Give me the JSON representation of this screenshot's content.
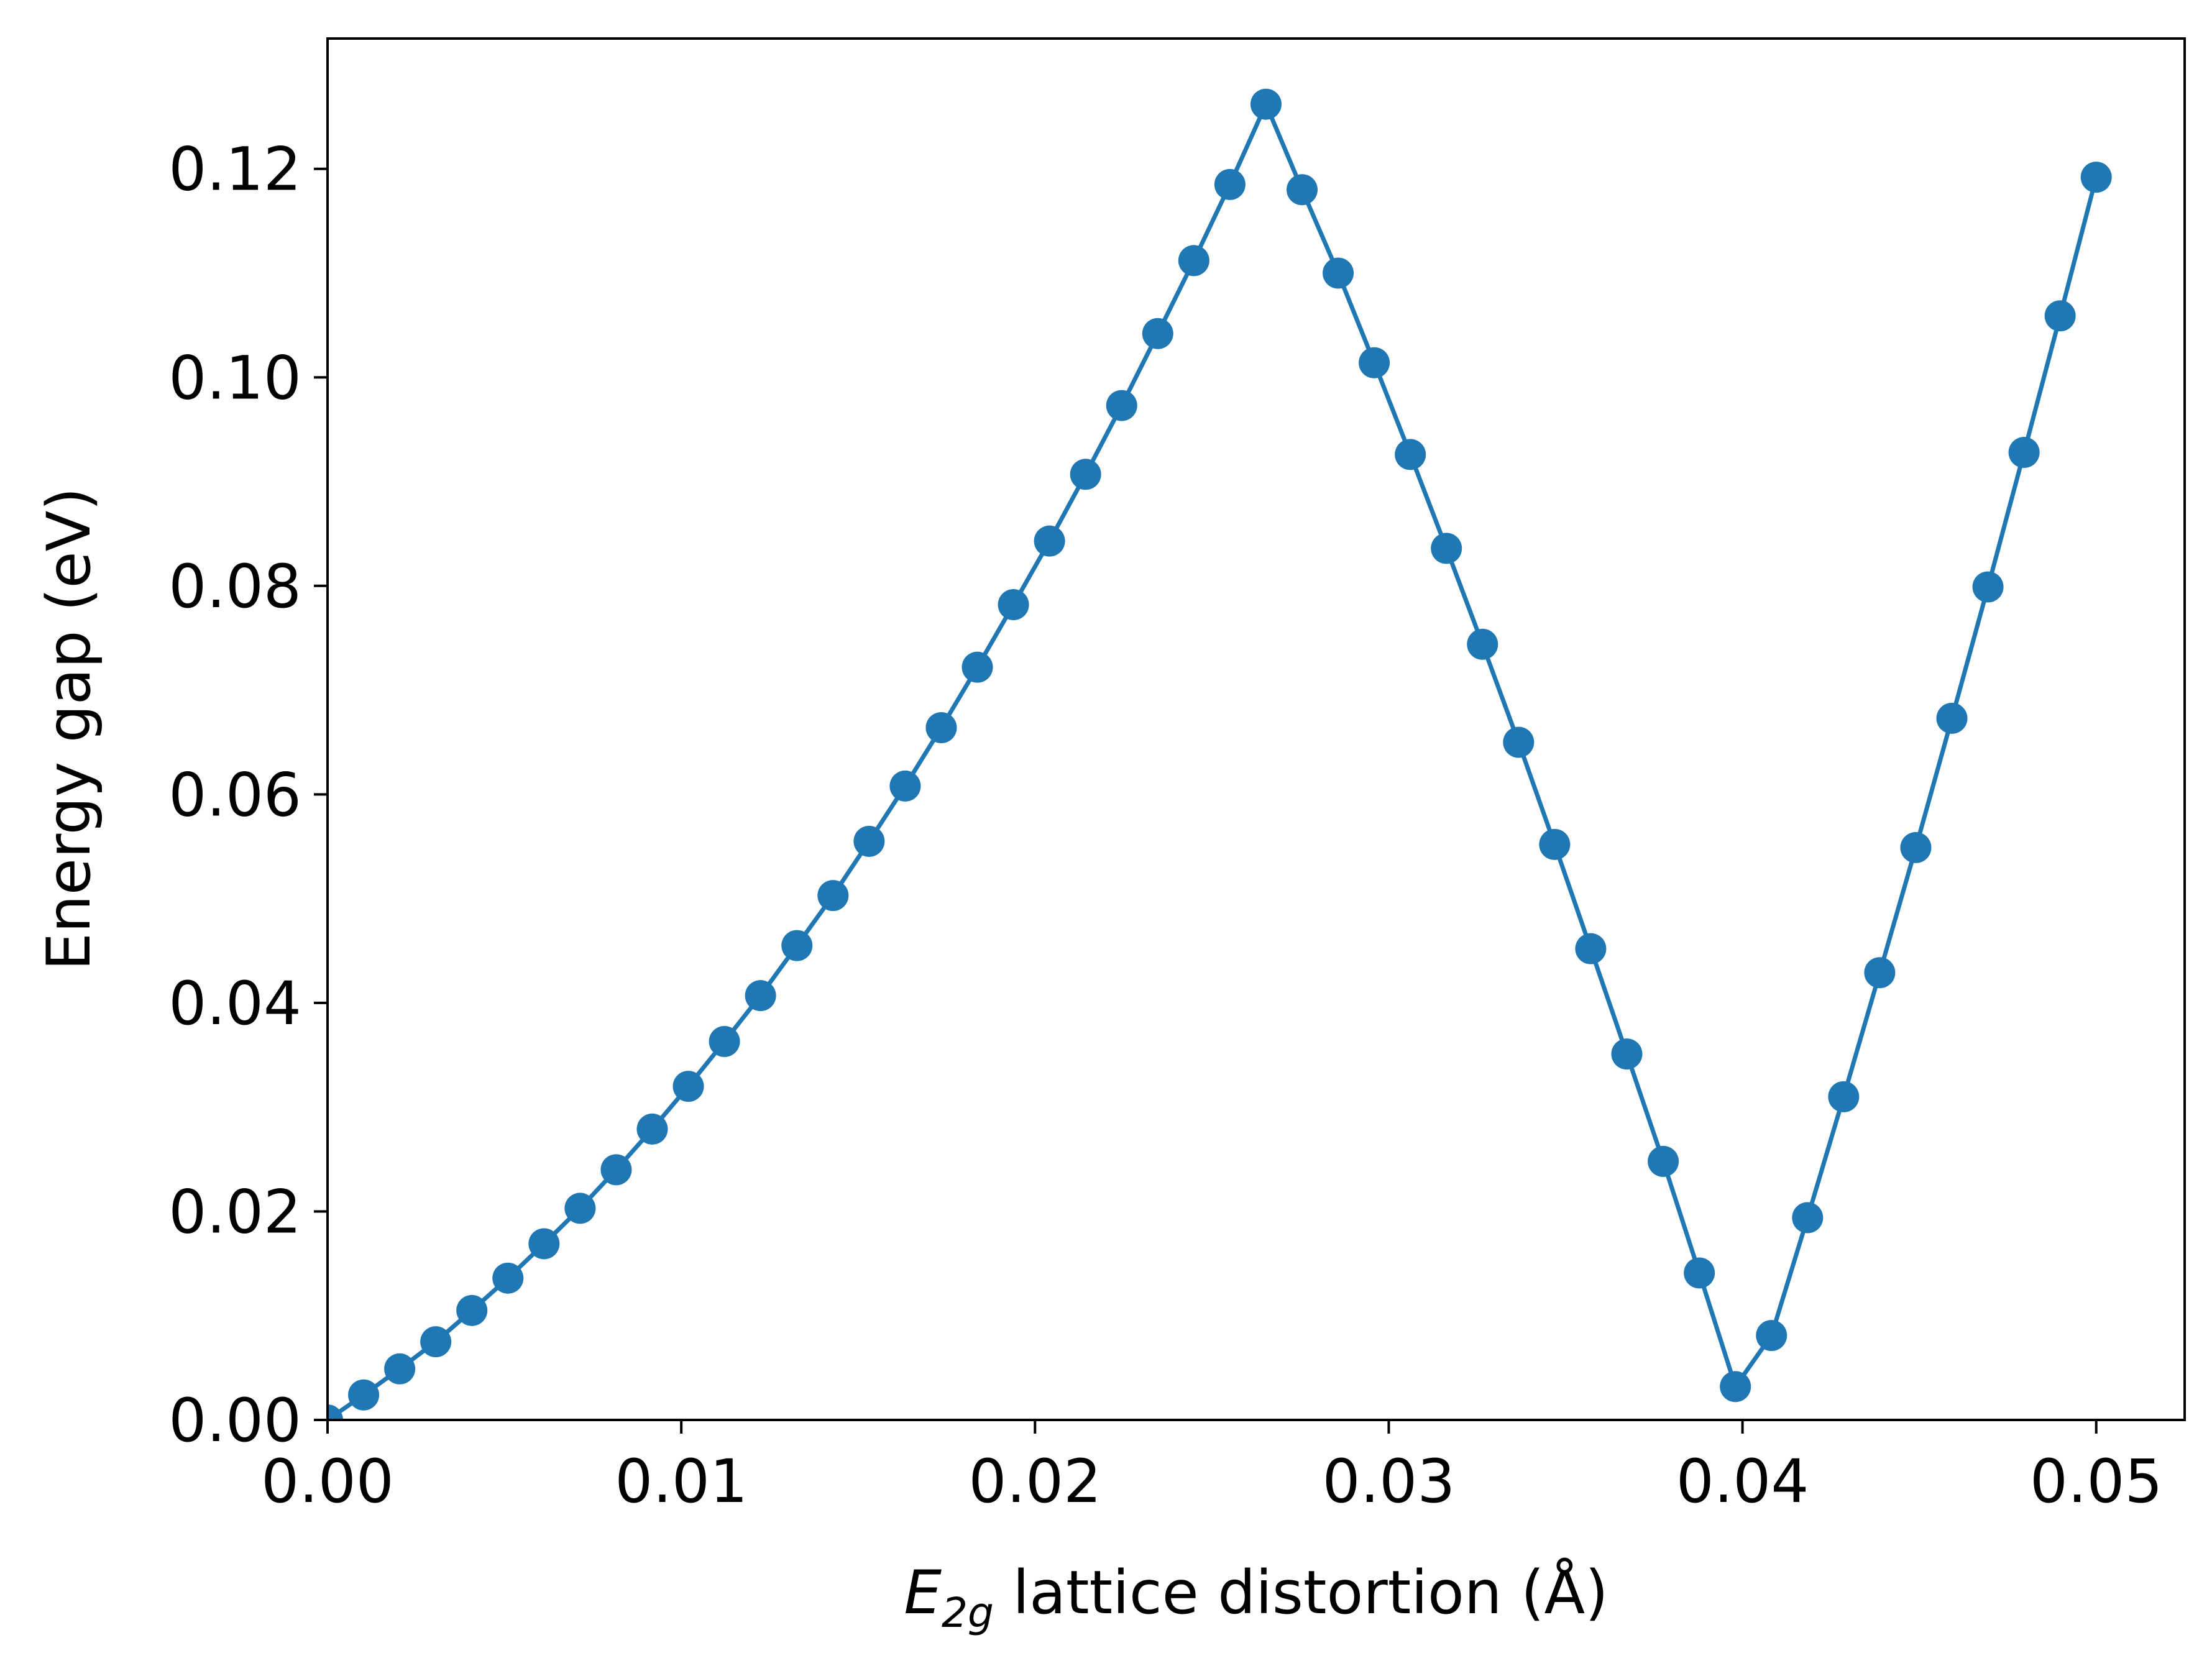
{
  "chart_data": {
    "type": "line",
    "xlabel": {
      "italic_symbol": "E",
      "subscript": "2g",
      "text": " lattice distortion (Å)"
    },
    "ylabel": "Energy gap (eV)",
    "xlim": [
      0.0,
      0.0525
    ],
    "ylim": [
      0.0,
      0.1325
    ],
    "xticks": [
      0.0,
      0.01,
      0.02,
      0.03,
      0.04,
      0.05
    ],
    "xtick_labels": [
      "0.00",
      "0.01",
      "0.02",
      "0.03",
      "0.04",
      "0.05"
    ],
    "yticks": [
      0.0,
      0.02,
      0.04,
      0.06,
      0.08,
      0.1,
      0.12
    ],
    "ytick_labels": [
      "0.00",
      "0.02",
      "0.04",
      "0.06",
      "0.08",
      "0.10",
      "0.12"
    ],
    "grid": false,
    "series": [
      {
        "color": "#1f77b4",
        "marker": "circle",
        "x": [
          0.0,
          0.00102,
          0.00204,
          0.00306,
          0.00408,
          0.0051,
          0.00612,
          0.00714,
          0.00816,
          0.00918,
          0.0102,
          0.01122,
          0.01224,
          0.01327,
          0.01429,
          0.01531,
          0.01633,
          0.01735,
          0.01837,
          0.01939,
          0.02041,
          0.02143,
          0.02245,
          0.02347,
          0.02449,
          0.02551,
          0.02653,
          0.02755,
          0.02857,
          0.02959,
          0.03061,
          0.03163,
          0.03265,
          0.03367,
          0.03469,
          0.03571,
          0.03673,
          0.03776,
          0.03878,
          0.0398,
          0.04082,
          0.04184,
          0.04286,
          0.04388,
          0.0449,
          0.04592,
          0.04694,
          0.04796,
          0.04898,
          0.05
        ],
        "y": [
          0.0,
          0.0024,
          0.0049,
          0.0075,
          0.0105,
          0.0136,
          0.0169,
          0.0203,
          0.024,
          0.0279,
          0.032,
          0.0363,
          0.0407,
          0.0455,
          0.0503,
          0.0555,
          0.0608,
          0.0664,
          0.0722,
          0.0782,
          0.0843,
          0.0907,
          0.0973,
          0.1042,
          0.1112,
          0.1185,
          0.1262,
          0.118,
          0.11,
          0.1014,
          0.0926,
          0.0836,
          0.0744,
          0.065,
          0.0552,
          0.0452,
          0.0351,
          0.0248,
          0.0141,
          0.0032,
          0.0081,
          0.0194,
          0.031,
          0.0429,
          0.0549,
          0.0673,
          0.0799,
          0.0928,
          0.1059,
          0.1192
        ]
      }
    ]
  }
}
